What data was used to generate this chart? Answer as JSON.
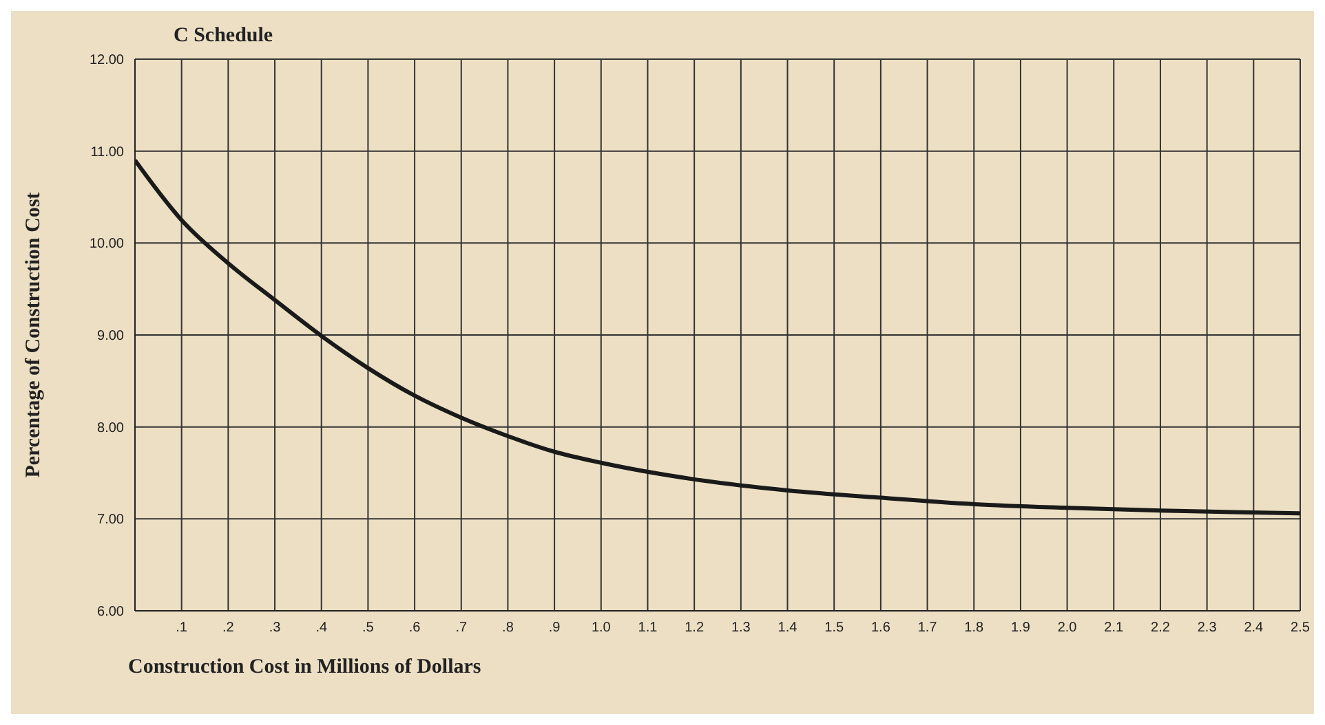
{
  "chart_data": {
    "type": "line",
    "title": "C Schedule",
    "xlabel": "Construction Cost in Millions of Dollars",
    "ylabel": "Percentage of Construction Cost",
    "x": [
      0,
      0.1,
      0.2,
      0.3,
      0.4,
      0.5,
      0.6,
      0.7,
      0.8,
      0.9,
      1.0,
      1.2,
      1.4,
      1.6,
      1.8,
      2.0,
      2.2,
      2.5
    ],
    "series": [
      {
        "color": "#1a1a1a",
        "values": [
          10.9,
          10.25,
          9.78,
          9.38,
          8.99,
          8.64,
          8.34,
          8.1,
          7.9,
          7.73,
          7.61,
          7.43,
          7.31,
          7.23,
          7.16,
          7.12,
          7.09,
          7.06
        ]
      }
    ],
    "xlim": [
      0,
      2.5
    ],
    "xticks": [
      {
        "value": 0.1,
        "label": ".1"
      },
      {
        "value": 0.2,
        "label": ".2"
      },
      {
        "value": 0.3,
        "label": ".3"
      },
      {
        "value": 0.4,
        "label": ".4"
      },
      {
        "value": 0.5,
        "label": ".5"
      },
      {
        "value": 0.6,
        "label": ".6"
      },
      {
        "value": 0.7,
        "label": ".7"
      },
      {
        "value": 0.8,
        "label": ".8"
      },
      {
        "value": 0.9,
        "label": ".9"
      },
      {
        "value": 1.0,
        "label": "1.0"
      },
      {
        "value": 1.1,
        "label": "1.1"
      },
      {
        "value": 1.2,
        "label": "1.2"
      },
      {
        "value": 1.3,
        "label": "1.3"
      },
      {
        "value": 1.4,
        "label": "1.4"
      },
      {
        "value": 1.5,
        "label": "1.5"
      },
      {
        "value": 1.6,
        "label": "1.6"
      },
      {
        "value": 1.7,
        "label": "1.7"
      },
      {
        "value": 1.8,
        "label": "1.8"
      },
      {
        "value": 1.9,
        "label": "1.9"
      },
      {
        "value": 2.0,
        "label": "2.0"
      },
      {
        "value": 2.1,
        "label": "2.1"
      },
      {
        "value": 2.2,
        "label": "2.2"
      },
      {
        "value": 2.3,
        "label": "2.3"
      },
      {
        "value": 2.4,
        "label": "2.4"
      },
      {
        "value": 2.5,
        "label": "2.5"
      }
    ],
    "ylim": [
      6,
      12
    ],
    "yticks": [
      {
        "value": 6,
        "label": "6.00"
      },
      {
        "value": 7,
        "label": "7.00"
      },
      {
        "value": 8,
        "label": "8.00"
      },
      {
        "value": 9,
        "label": "9.00"
      },
      {
        "value": 10,
        "label": "10.00"
      },
      {
        "value": 11,
        "label": "11.00"
      },
      {
        "value": 12,
        "label": "12.00"
      }
    ],
    "grid": true,
    "marker": "none",
    "line_style": "solid"
  }
}
